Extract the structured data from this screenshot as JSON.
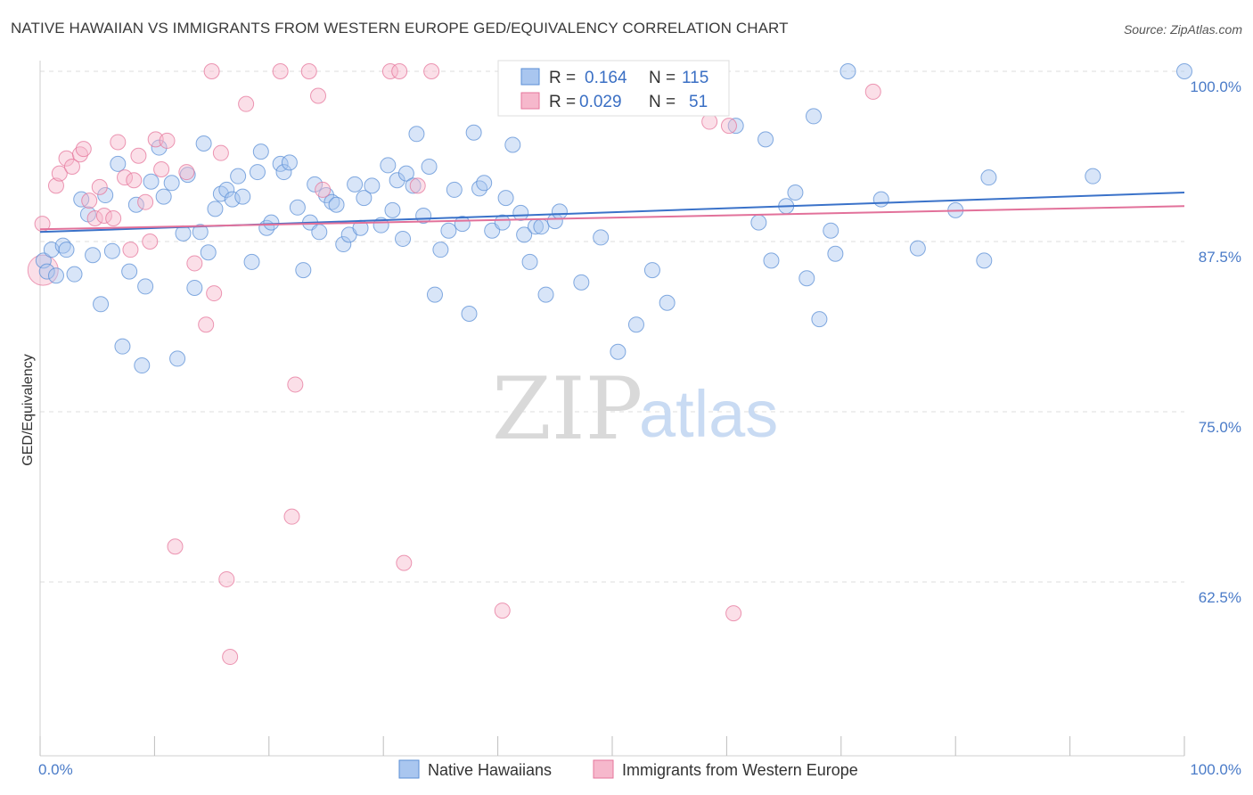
{
  "title": "NATIVE HAWAIIAN VS IMMIGRANTS FROM WESTERN EUROPE GED/EQUIVALENCY CORRELATION CHART",
  "source": "Source: ZipAtlas.com",
  "watermark": {
    "zip": "ZIP",
    "atlas": "atlas"
  },
  "colors": {
    "blue": "#5b8fd6",
    "blue_fill": "#a9c6ef",
    "pink": "#e5769b",
    "pink_fill": "#f6b8cc",
    "blue_line": "#3a72c9",
    "pink_line": "#e2719a"
  },
  "legend": {
    "rows": [
      {
        "r_label": "R =",
        "r_value": "0.164",
        "n_label": "N =",
        "n_value": "115"
      },
      {
        "r_label": "R =",
        "r_value": "0.029",
        "n_label": "N =",
        "n_value": "51"
      }
    ]
  },
  "chart_data": {
    "type": "scatter",
    "xlabel": "",
    "ylabel": "GED/Equivalency",
    "xlim": [
      0,
      100
    ],
    "ylim": [
      50,
      102
    ],
    "x_tick_labels": [
      "0.0%",
      "100.0%"
    ],
    "y_ticks": [
      {
        "value": 100,
        "label": "100.0%"
      },
      {
        "value": 87.5,
        "label": "87.5%"
      },
      {
        "value": 75,
        "label": "75.0%"
      },
      {
        "value": 62.5,
        "label": "62.5%"
      }
    ],
    "grid": "horizontal dashed",
    "legend_position": "top-center",
    "series": [
      {
        "name": "Native Hawaiians",
        "trend": {
          "x0": 0,
          "y0": 88.2,
          "x1": 100,
          "y1": 91.1
        },
        "points": [
          [
            0.3,
            86.1
          ],
          [
            0.6,
            85.3
          ],
          [
            1.0,
            86.9
          ],
          [
            1.4,
            85.0
          ],
          [
            2.0,
            87.2
          ],
          [
            2.3,
            86.9
          ],
          [
            3.0,
            85.1
          ],
          [
            3.6,
            90.6
          ],
          [
            4.2,
            89.5
          ],
          [
            4.6,
            86.5
          ],
          [
            5.3,
            82.9
          ],
          [
            5.7,
            90.9
          ],
          [
            6.3,
            86.8
          ],
          [
            6.8,
            93.2
          ],
          [
            7.2,
            79.8
          ],
          [
            7.8,
            85.3
          ],
          [
            8.4,
            90.2
          ],
          [
            8.9,
            78.4
          ],
          [
            9.2,
            84.2
          ],
          [
            9.7,
            91.9
          ],
          [
            10.4,
            94.4
          ],
          [
            10.8,
            90.8
          ],
          [
            11.5,
            91.8
          ],
          [
            12.0,
            78.9
          ],
          [
            12.5,
            88.1
          ],
          [
            12.9,
            92.4
          ],
          [
            13.5,
            84.1
          ],
          [
            14.0,
            88.2
          ],
          [
            14.3,
            94.7
          ],
          [
            14.7,
            86.7
          ],
          [
            15.3,
            89.9
          ],
          [
            15.8,
            91.0
          ],
          [
            16.3,
            91.3
          ],
          [
            16.8,
            90.6
          ],
          [
            17.3,
            92.3
          ],
          [
            17.7,
            90.8
          ],
          [
            18.5,
            86.0
          ],
          [
            19.0,
            92.6
          ],
          [
            19.3,
            94.1
          ],
          [
            19.8,
            88.5
          ],
          [
            20.2,
            88.9
          ],
          [
            21.0,
            93.2
          ],
          [
            21.3,
            92.6
          ],
          [
            21.8,
            93.3
          ],
          [
            22.5,
            90.0
          ],
          [
            23.0,
            85.4
          ],
          [
            23.6,
            88.9
          ],
          [
            24.0,
            91.7
          ],
          [
            24.4,
            88.2
          ],
          [
            25.0,
            90.9
          ],
          [
            25.5,
            90.4
          ],
          [
            25.9,
            90.2
          ],
          [
            26.5,
            87.3
          ],
          [
            27.0,
            88.0
          ],
          [
            27.5,
            91.7
          ],
          [
            28.0,
            88.5
          ],
          [
            28.3,
            90.7
          ],
          [
            29.0,
            91.6
          ],
          [
            29.8,
            88.7
          ],
          [
            30.4,
            93.1
          ],
          [
            30.8,
            89.8
          ],
          [
            31.2,
            92.0
          ],
          [
            31.7,
            87.7
          ],
          [
            32.0,
            92.5
          ],
          [
            32.6,
            91.6
          ],
          [
            32.9,
            95.4
          ],
          [
            33.5,
            89.4
          ],
          [
            34.0,
            93.0
          ],
          [
            34.5,
            83.6
          ],
          [
            35.0,
            86.9
          ],
          [
            35.7,
            88.3
          ],
          [
            36.2,
            91.3
          ],
          [
            36.9,
            88.8
          ],
          [
            37.5,
            82.2
          ],
          [
            37.9,
            95.5
          ],
          [
            38.4,
            91.4
          ],
          [
            38.8,
            91.8
          ],
          [
            39.5,
            88.3
          ],
          [
            40.4,
            88.9
          ],
          [
            40.7,
            90.7
          ],
          [
            41.3,
            94.6
          ],
          [
            42.0,
            89.6
          ],
          [
            42.3,
            88.0
          ],
          [
            42.8,
            86.0
          ],
          [
            43.3,
            88.6
          ],
          [
            43.8,
            88.6
          ],
          [
            44.2,
            83.6
          ],
          [
            45.0,
            89.0
          ],
          [
            45.4,
            89.7
          ],
          [
            47.3,
            84.5
          ],
          [
            49.0,
            87.8
          ],
          [
            50.5,
            79.4
          ],
          [
            52.1,
            81.4
          ],
          [
            53.5,
            85.4
          ],
          [
            54.8,
            83.0
          ],
          [
            59.5,
            100.0
          ],
          [
            60.8,
            96.0
          ],
          [
            62.8,
            88.9
          ],
          [
            63.4,
            95.0
          ],
          [
            63.9,
            86.1
          ],
          [
            65.2,
            90.1
          ],
          [
            66.0,
            91.1
          ],
          [
            67.0,
            84.8
          ],
          [
            67.6,
            96.7
          ],
          [
            68.1,
            81.8
          ],
          [
            69.1,
            88.3
          ],
          [
            69.5,
            86.6
          ],
          [
            70.6,
            100.0
          ],
          [
            73.5,
            90.6
          ],
          [
            76.7,
            87.0
          ],
          [
            80.0,
            89.8
          ],
          [
            82.5,
            86.1
          ],
          [
            82.9,
            92.2
          ],
          [
            92.0,
            92.3
          ],
          [
            100.0,
            100.0
          ]
        ]
      },
      {
        "name": "Immigrants from Western Europe",
        "trend": {
          "x0": 0,
          "y0": 88.4,
          "x1": 100,
          "y1": 90.1
        },
        "points": [
          [
            0.2,
            88.8
          ],
          [
            1.4,
            91.6
          ],
          [
            1.7,
            92.5
          ],
          [
            2.3,
            93.6
          ],
          [
            2.8,
            93.0
          ],
          [
            3.5,
            93.9
          ],
          [
            3.8,
            94.3
          ],
          [
            4.3,
            90.5
          ],
          [
            4.8,
            89.2
          ],
          [
            5.2,
            91.5
          ],
          [
            5.6,
            89.4
          ],
          [
            6.4,
            89.2
          ],
          [
            6.8,
            94.8
          ],
          [
            7.4,
            92.2
          ],
          [
            7.9,
            86.9
          ],
          [
            8.2,
            92.0
          ],
          [
            8.6,
            93.8
          ],
          [
            9.2,
            90.4
          ],
          [
            9.6,
            87.5
          ],
          [
            10.1,
            95.0
          ],
          [
            10.6,
            92.8
          ],
          [
            11.1,
            94.9
          ],
          [
            11.8,
            65.1
          ],
          [
            12.8,
            92.6
          ],
          [
            13.5,
            85.9
          ],
          [
            14.5,
            81.4
          ],
          [
            15.0,
            100.0
          ],
          [
            15.2,
            83.7
          ],
          [
            15.8,
            94.0
          ],
          [
            16.3,
            62.7
          ],
          [
            16.6,
            57.0
          ],
          [
            18.0,
            97.6
          ],
          [
            21.0,
            100.0
          ],
          [
            22.0,
            67.3
          ],
          [
            22.3,
            77.0
          ],
          [
            23.5,
            100.0
          ],
          [
            24.3,
            98.2
          ],
          [
            24.7,
            91.3
          ],
          [
            30.6,
            100.0
          ],
          [
            31.4,
            100.0
          ],
          [
            31.8,
            63.9
          ],
          [
            33.0,
            91.6
          ],
          [
            34.2,
            100.0
          ],
          [
            40.4,
            60.4
          ],
          [
            46.0,
            100.0
          ],
          [
            49.3,
            100.0
          ],
          [
            55.0,
            100.0
          ],
          [
            58.5,
            96.3
          ],
          [
            60.2,
            96.0
          ],
          [
            60.6,
            60.2
          ],
          [
            72.8,
            98.5
          ]
        ]
      }
    ],
    "large_point": {
      "series": 1,
      "x": 0.1,
      "y": 85.4
    }
  },
  "bottom_legend": [
    {
      "label": "Native Hawaiians"
    },
    {
      "label": "Immigrants from Western Europe"
    }
  ]
}
